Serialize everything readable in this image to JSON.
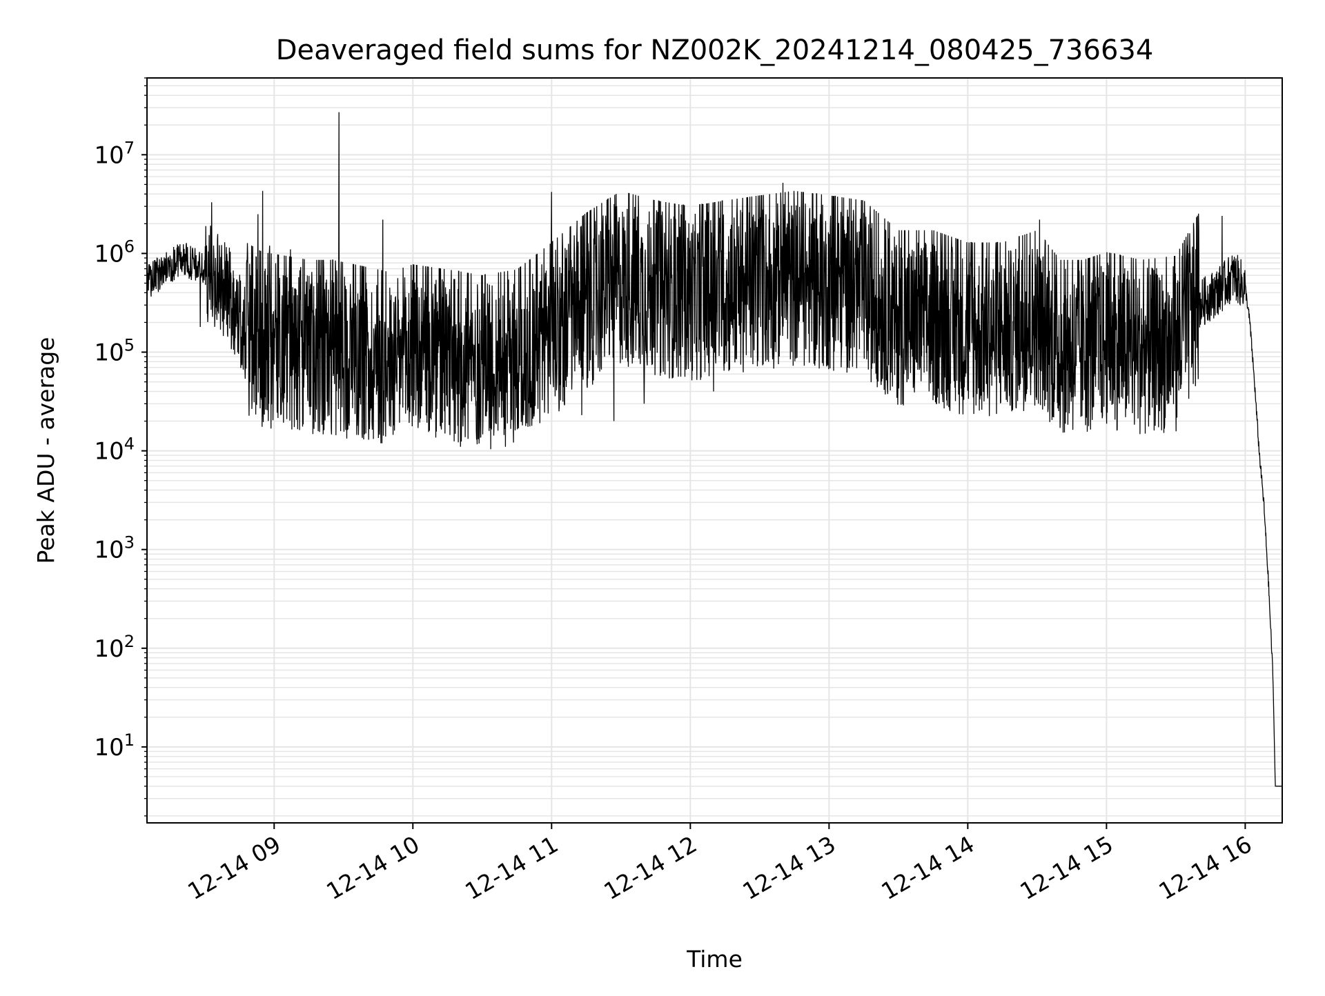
{
  "chart_data": {
    "type": "line",
    "title": "Deaveraged field sums for NZ002K_20241214_080425_736634",
    "xlabel": "Time",
    "ylabel": "Peak ADU - average",
    "yscale": "log",
    "ylim": [
      1.7,
      60000000
    ],
    "xlim": [
      "2024-12-14 08:05",
      "2024-12-14 16:16"
    ],
    "x_ticks": [
      "2024-12-14 09:00",
      "2024-12-14 10:00",
      "2024-12-14 11:00",
      "2024-12-14 12:00",
      "2024-12-14 13:00",
      "2024-12-14 14:00",
      "2024-12-14 15:00",
      "2024-12-14 16:00"
    ],
    "x_tick_labels": [
      "12-14 09",
      "12-14 10",
      "12-14 11",
      "12-14 12",
      "12-14 13",
      "12-14 14",
      "12-14 15",
      "12-14 16"
    ],
    "y_ticks": [
      10,
      100,
      1000,
      10000,
      100000,
      1000000,
      10000000
    ],
    "y_tick_bases": [
      "10",
      "10",
      "10",
      "10",
      "10",
      "10",
      "10"
    ],
    "y_tick_exponents": [
      "1",
      "2",
      "3",
      "4",
      "5",
      "6",
      "7"
    ],
    "grid": true,
    "grid_color": "#e5e5e5",
    "line_color": "#000000",
    "legend": "none",
    "series": [
      {
        "x": [
          "2024-12-14 08:05",
          "2024-12-14 08:15",
          "2024-12-14 08:20",
          "2024-12-14 08:28",
          "2024-12-14 08:33",
          "2024-12-14 08:40",
          "2024-12-14 08:48",
          "2024-12-14 08:55",
          "2024-12-14 09:05",
          "2024-12-14 09:15",
          "2024-12-14 09:25",
          "2024-12-14 09:35",
          "2024-12-14 09:45",
          "2024-12-14 09:50",
          "2024-12-14 10:00",
          "2024-12-14 10:15",
          "2024-12-14 10:30",
          "2024-12-14 10:45",
          "2024-12-14 11:00",
          "2024-12-14 11:15",
          "2024-12-14 11:30",
          "2024-12-14 11:45",
          "2024-12-14 12:00",
          "2024-12-14 12:15",
          "2024-12-14 12:30",
          "2024-12-14 12:45",
          "2024-12-14 13:00",
          "2024-12-14 13:15",
          "2024-12-14 13:30",
          "2024-12-14 13:45",
          "2024-12-14 14:00",
          "2024-12-14 14:15",
          "2024-12-14 14:30",
          "2024-12-14 14:40",
          "2024-12-14 14:50",
          "2024-12-14 15:00",
          "2024-12-14 15:15",
          "2024-12-14 15:30",
          "2024-12-14 15:40",
          "2024-12-14 15:50",
          "2024-12-14 15:55",
          "2024-12-14 16:00",
          "2024-12-14 16:02",
          "2024-12-14 16:04",
          "2024-12-14 16:06",
          "2024-12-14 16:08",
          "2024-12-14 16:10",
          "2024-12-14 16:12",
          "2024-12-14 16:13",
          "2024-12-14 16:16"
        ],
        "y": [
          500000,
          750000,
          900000,
          700000,
          600000,
          400000,
          150000,
          120000,
          110000,
          100000,
          100000,
          90000,
          80000,
          75000,
          90000,
          80000,
          70000,
          80000,
          150000,
          300000,
          500000,
          400000,
          350000,
          400000,
          450000,
          500000,
          450000,
          400000,
          200000,
          200000,
          150000,
          150000,
          200000,
          100000,
          100000,
          120000,
          100000,
          110000,
          300000,
          450000,
          600000,
          450000,
          200000,
          50000,
          10000,
          3000,
          500,
          50,
          4,
          4
        ]
      }
    ],
    "spikes": [
      {
        "x": "2024-12-14 08:33",
        "y": 3300000
      },
      {
        "x": "2024-12-14 08:53",
        "y": 2500000
      },
      {
        "x": "2024-12-14 08:55",
        "y": 4300000
      },
      {
        "x": "2024-12-14 08:58",
        "y": 1200000
      },
      {
        "x": "2024-12-14 09:07",
        "y": 1100000
      },
      {
        "x": "2024-12-14 09:28",
        "y": 27000000
      },
      {
        "x": "2024-12-14 09:47",
        "y": 2200000
      },
      {
        "x": "2024-12-14 11:00",
        "y": 4200000
      },
      {
        "x": "2024-12-14 11:46",
        "y": 1400000
      },
      {
        "x": "2024-12-14 12:32",
        "y": 1200000
      },
      {
        "x": "2024-12-14 12:40",
        "y": 5200000
      },
      {
        "x": "2024-12-14 14:31",
        "y": 2200000
      },
      {
        "x": "2024-12-14 15:36",
        "y": 1600000
      },
      {
        "x": "2024-12-14 15:50",
        "y": 2400000
      }
    ],
    "dips": [
      {
        "x": "2024-12-14 08:28",
        "y": 180000
      },
      {
        "x": "2024-12-14 10:32",
        "y": 25000
      },
      {
        "x": "2024-12-14 10:48",
        "y": 23000
      },
      {
        "x": "2024-12-14 11:13",
        "y": 23000
      },
      {
        "x": "2024-12-14 11:27",
        "y": 20000
      },
      {
        "x": "2024-12-14 11:40",
        "y": 30000
      },
      {
        "x": "2024-12-14 12:10",
        "y": 40000
      }
    ]
  }
}
